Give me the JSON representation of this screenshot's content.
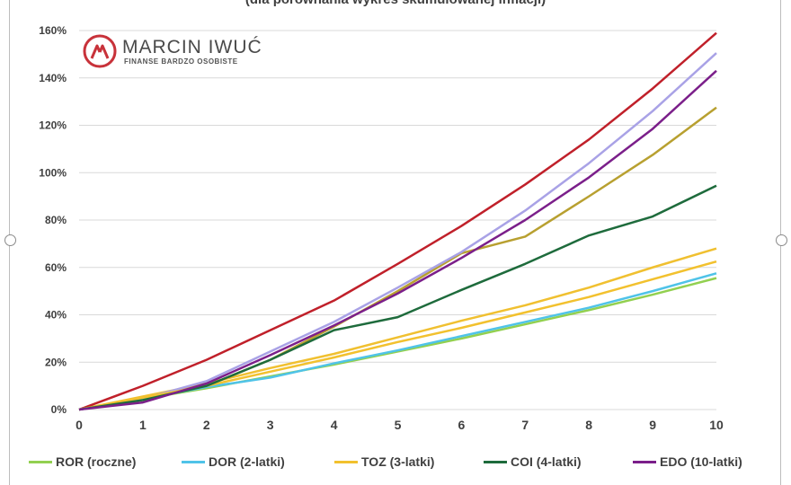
{
  "title": "(dla porównania wykres skumulowanej inflacji)",
  "logo": {
    "name": "MARCIN IWUĆ",
    "tagline": "FINANSE BARDZO OSOBISTE"
  },
  "chart_data": {
    "type": "line",
    "x": [
      0,
      1,
      2,
      3,
      4,
      5,
      6,
      7,
      8,
      9,
      10
    ],
    "y_ticks": [
      "0%",
      "20%",
      "40%",
      "60%",
      "80%",
      "100%",
      "120%",
      "140%",
      "160%"
    ],
    "x_ticks": [
      "0",
      "1",
      "2",
      "3",
      "4",
      "5",
      "6",
      "7",
      "8",
      "9",
      "10"
    ],
    "ylim": [
      0,
      160
    ],
    "xlim": [
      0,
      10
    ],
    "grid": "horizontal",
    "legend_position": "bottom",
    "series": [
      {
        "name": "ROR (roczne)",
        "color": "#92d050",
        "values": [
          0,
          4.5,
          9,
          14,
          19,
          24.5,
          30,
          36,
          42,
          48.5,
          55.5
        ]
      },
      {
        "name": "DOR (2-latki)",
        "color": "#4fc3e8",
        "values": [
          0,
          4.5,
          9.5,
          13.5,
          19.5,
          25,
          31,
          37,
          43,
          50,
          57.5
        ]
      },
      {
        "name": "TOZ (3-latki)",
        "color": "#f2c12e",
        "values": [
          0,
          5,
          10,
          16,
          22,
          28.5,
          34.5,
          41,
          47.5,
          55,
          62.5
        ]
      },
      {
        "name": "COI (4-latki)",
        "color": "#1e6b3c",
        "values": [
          0,
          4,
          10,
          21,
          33.5,
          39,
          50.5,
          61.5,
          73.5,
          81.5,
          94.5
        ]
      },
      {
        "name": "EDO (10-latki)",
        "color": "#7b1f8a",
        "values": [
          0,
          3,
          11,
          23,
          35.5,
          49,
          64,
          80,
          98,
          118.5,
          143
        ]
      }
    ],
    "extra_series": [
      {
        "color": "#f0c030",
        "values": [
          0,
          5.5,
          11,
          17.5,
          23.5,
          30.5,
          37.5,
          44,
          51.5,
          60,
          68
        ]
      },
      {
        "color": "#b8a030",
        "values": [
          0,
          4,
          10,
          21,
          35,
          50,
          66,
          73,
          90,
          107.5,
          127.5
        ]
      },
      {
        "color": "#a9a2e6",
        "values": [
          0,
          4.5,
          12,
          24.5,
          37,
          51.5,
          66.5,
          84,
          104,
          126,
          150.5
        ]
      },
      {
        "color": "#c0202a",
        "values": [
          0,
          10,
          21,
          33.5,
          46,
          61.5,
          77.5,
          95,
          114,
          135.5,
          159
        ]
      }
    ]
  }
}
